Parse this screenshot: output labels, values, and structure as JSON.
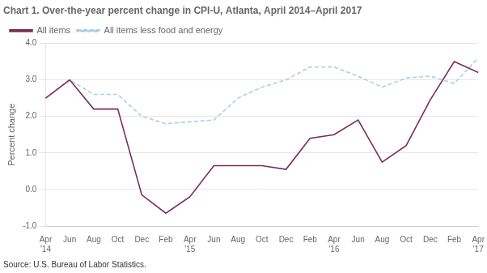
{
  "chart_data": {
    "type": "line",
    "title": "Chart 1. Over-the-year percent change in CPI-U, Atlanta, April 2014–April 2017",
    "y_label": "Percent change",
    "annotations": [
      "Source: U.S. Bureau of Labor Statistics."
    ],
    "categories": [
      "Apr\n'14",
      "Jun",
      "Aug",
      "Oct",
      "Dec",
      "Feb",
      "Apr\n'15",
      "Jun",
      "Aug",
      "Oct",
      "Dec",
      "Feb",
      "Apr\n'16",
      "Jun",
      "Aug",
      "Oct",
      "Dec",
      "Feb",
      "Apr\n'17"
    ],
    "series": [
      {
        "name": "All items",
        "color": "#7b2d52",
        "line_style": "solid",
        "values": [
          2.5,
          3.0,
          2.2,
          2.2,
          -0.15,
          -0.65,
          -0.2,
          0.65,
          0.65,
          0.65,
          0.55,
          1.4,
          1.5,
          1.9,
          0.75,
          1.2,
          2.45,
          3.5,
          3.2
        ]
      },
      {
        "name": "All items less food and energy",
        "color": "#aacfe8",
        "line_style": "dashed",
        "values": [
          2.5,
          3.0,
          2.6,
          2.6,
          2.0,
          1.8,
          1.85,
          1.9,
          2.5,
          2.8,
          3.0,
          3.35,
          3.35,
          3.1,
          2.8,
          3.05,
          3.1,
          2.9,
          3.6
        ]
      }
    ],
    "ylim": [
      -1.0,
      4.0
    ],
    "yticks": [
      {
        "value": -1.0,
        "label": "-1.0"
      },
      {
        "value": 0.0,
        "label": "0.0"
      },
      {
        "value": 1.0,
        "label": "1.0"
      },
      {
        "value": 2.0,
        "label": "2.0"
      },
      {
        "value": 3.0,
        "label": "3.0"
      },
      {
        "value": 4.0,
        "label": "4.0"
      }
    ],
    "grid": true,
    "legend": "upper left"
  }
}
